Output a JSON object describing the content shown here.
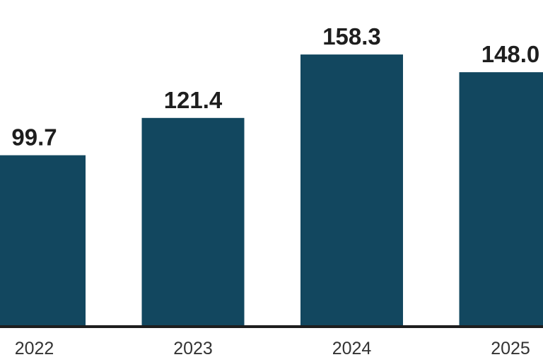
{
  "chart_data": {
    "type": "bar",
    "categories": [
      "2022",
      "2023",
      "2024",
      "2025"
    ],
    "values": [
      99.7,
      121.4,
      158.3,
      148.0
    ],
    "value_labels": [
      "99.7",
      "121.4",
      "158.3",
      "148.0"
    ],
    "color": "#12475f",
    "ylim": [
      0,
      190
    ]
  }
}
